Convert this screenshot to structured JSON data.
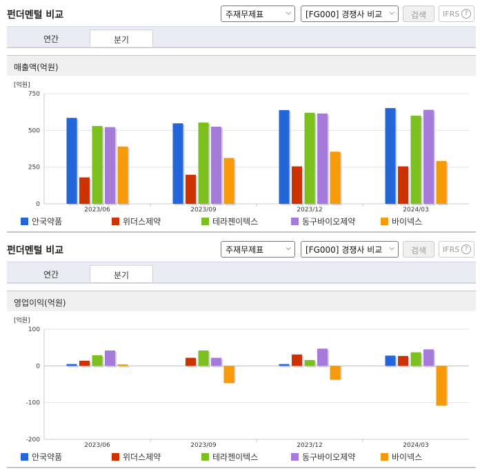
{
  "panels": [
    {
      "title": "펀더멘털 비교",
      "select1": "주재무제표",
      "select2": "[FG000] 경쟁사 비교",
      "search_btn": "검색",
      "ifrs": "IFRS",
      "help": "?",
      "tabs": [
        "연간",
        "분기"
      ],
      "active_tab": 1,
      "section": "매출액(억원)"
    },
    {
      "title": "펀더멘털 비교",
      "select1": "주재무제표",
      "select2": "[FG000] 경쟁사 비교",
      "search_btn": "검색",
      "ifrs": "IFRS",
      "help": "?",
      "tabs": [
        "연간",
        "분기"
      ],
      "active_tab": 1,
      "section": "영업이익(억원)"
    }
  ],
  "chart_data": [
    {
      "type": "bar",
      "unit_label": "[억원]",
      "categories": [
        "2023/06",
        "2023/09",
        "2023/12",
        "2024/03"
      ],
      "yticks": [
        0,
        250,
        500,
        750
      ],
      "ylim": [
        0,
        750
      ],
      "grid": true,
      "legend": "bottom",
      "series": [
        {
          "name": "안국약품",
          "color": "#2366d9",
          "values": [
            585,
            548,
            638,
            652
          ]
        },
        {
          "name": "위더스제약",
          "color": "#cc3300",
          "values": [
            180,
            198,
            255,
            255
          ]
        },
        {
          "name": "테라젠이텍스",
          "color": "#7cbf1e",
          "values": [
            530,
            553,
            620,
            600
          ]
        },
        {
          "name": "동구바이오제약",
          "color": "#a57bd9",
          "values": [
            522,
            525,
            615,
            640
          ]
        },
        {
          "name": "바이넥스",
          "color": "#f79a0a",
          "values": [
            390,
            312,
            355,
            292
          ]
        }
      ]
    },
    {
      "type": "bar",
      "unit_label": "[억원]",
      "categories": [
        "2023/06",
        "2023/09",
        "2023/12",
        "2024/03"
      ],
      "yticks": [
        -200,
        -100,
        0,
        100
      ],
      "ylim": [
        -200,
        100
      ],
      "grid": true,
      "legend": "bottom",
      "series": [
        {
          "name": "안국약품",
          "color": "#2366d9",
          "values": [
            5,
            0,
            5,
            28
          ]
        },
        {
          "name": "위더스제약",
          "color": "#cc3300",
          "values": [
            14,
            22,
            31,
            27
          ]
        },
        {
          "name": "테라젠이텍스",
          "color": "#7cbf1e",
          "values": [
            29,
            42,
            16,
            37
          ]
        },
        {
          "name": "동구바이오제약",
          "color": "#a57bd9",
          "values": [
            42,
            22,
            47,
            45
          ]
        },
        {
          "name": "바이넥스",
          "color": "#f79a0a",
          "values": [
            4,
            -47,
            -38,
            -108
          ]
        }
      ]
    }
  ]
}
